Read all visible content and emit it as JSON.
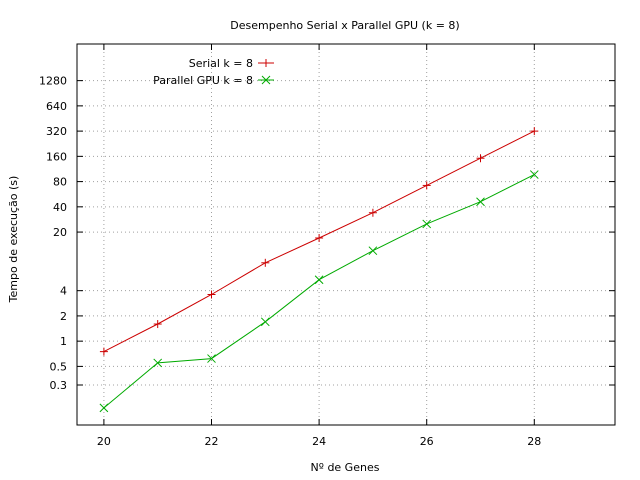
{
  "chart_data": {
    "type": "line",
    "title": "Desempenho Serial x Parallel GPU (k = 8)",
    "xlabel": "Nº de Genes",
    "ylabel": "Tempo de execução (s)",
    "xlim": [
      19.5,
      29.5
    ],
    "ylim": [
      0.1,
      3500
    ],
    "yscale": "log",
    "grid": true,
    "legend_position": "top-left",
    "xticks": [
      20,
      22,
      24,
      26,
      28
    ],
    "xtick_labels": [
      "20",
      "22",
      "24",
      "26",
      "28"
    ],
    "yticks": [
      0.3,
      0.5,
      1,
      2,
      4,
      20,
      40,
      80,
      160,
      320,
      640,
      1280
    ],
    "ytick_labels": [
      "0.3",
      "0.5",
      "1",
      "2",
      "4",
      "20",
      "40",
      "80",
      "160",
      "320",
      "640",
      "1280"
    ],
    "x": [
      20,
      21,
      22,
      23,
      24,
      25,
      26,
      27,
      28
    ],
    "series": [
      {
        "name": "Serial k = 8",
        "color": "#cc0000",
        "marker": "plus",
        "values": [
          0.75,
          1.6,
          3.6,
          8.6,
          17,
          34,
          72,
          152,
          320
        ]
      },
      {
        "name": "Parallel GPU k = 8",
        "color": "#00aa00",
        "marker": "cross",
        "values": [
          0.16,
          0.55,
          0.62,
          1.7,
          5.4,
          12,
          25,
          46,
          97
        ]
      }
    ]
  }
}
